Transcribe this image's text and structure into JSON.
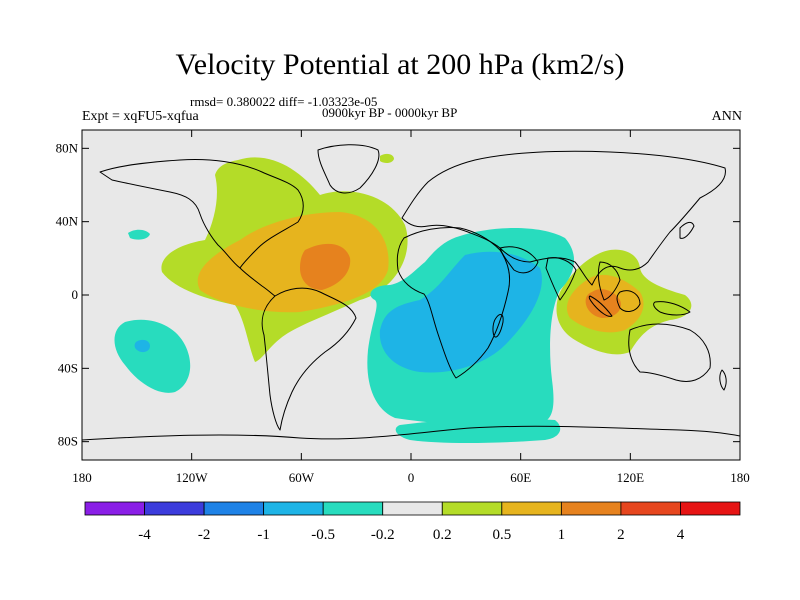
{
  "title": "Velocity Potential at 200 hPa (km2/s)",
  "rmsd_line": "rmsd= 0.380022 diff= -1.03323e-05",
  "experiment": "Expt = xqFU5-xqfua",
  "period": "0900kyr BP - 0000kyr BP",
  "season": "ANN",
  "map": {
    "projection": "cylindrical equidistant",
    "lat_range": [
      -90,
      90
    ],
    "lon_range": [
      -180,
      180
    ],
    "lat_ticks": [
      {
        "lat": 80,
        "label": "80N"
      },
      {
        "lat": 40,
        "label": "40N"
      },
      {
        "lat": 0,
        "label": "0"
      },
      {
        "lat": -40,
        "label": "40S"
      },
      {
        "lat": -80,
        "label": "80S"
      }
    ],
    "lon_ticks": [
      {
        "lon": -180,
        "label": "180"
      },
      {
        "lon": -120,
        "label": "120W"
      },
      {
        "lon": -60,
        "label": "60W"
      },
      {
        "lon": 0,
        "label": "0"
      },
      {
        "lon": 60,
        "label": "60E"
      },
      {
        "lon": 120,
        "label": "120E"
      },
      {
        "lon": 180,
        "label": "180"
      }
    ]
  },
  "colors": {
    "background_field": "#e8e8e8",
    "coastline": "#000000"
  },
  "colorbar": {
    "levels": [
      "-4",
      "-2",
      "-1",
      "-0.5",
      "-0.2",
      "0.2",
      "0.5",
      "1",
      "2",
      "4"
    ],
    "colors": [
      "#8a1ee6",
      "#3c3cdc",
      "#1e82e6",
      "#1eb4e6",
      "#28dcbe",
      "#e8e8e8",
      "#b4dc28",
      "#e6b41e",
      "#e6821e",
      "#e6461e",
      "#e61414"
    ]
  },
  "chart_data": {
    "type": "heatmap",
    "title": "Velocity Potential at 200 hPa (km2/s)",
    "units": "km2/s",
    "field_features": [
      {
        "name": "positive anomaly - tropical Atlantic / Americas",
        "center_lon": -55,
        "center_lat": 10,
        "peak_value": 2
      },
      {
        "name": "positive anomaly - North America",
        "center_lon": -95,
        "center_lat": 50,
        "peak_value": 0.5
      },
      {
        "name": "positive anomaly - Maritime Continent",
        "center_lon": 100,
        "center_lat": -5,
        "peak_value": 2
      },
      {
        "name": "negative anomaly - Africa / Indian Ocean",
        "center_lon": 30,
        "center_lat": -15,
        "peak_value": -1
      },
      {
        "name": "negative anomaly - South Pacific",
        "center_lon": -150,
        "center_lat": -28,
        "peak_value": -1
      },
      {
        "name": "negative anomaly - Antarctic coast",
        "center_lon": 40,
        "center_lat": -75,
        "peak_value": -0.5
      }
    ]
  }
}
